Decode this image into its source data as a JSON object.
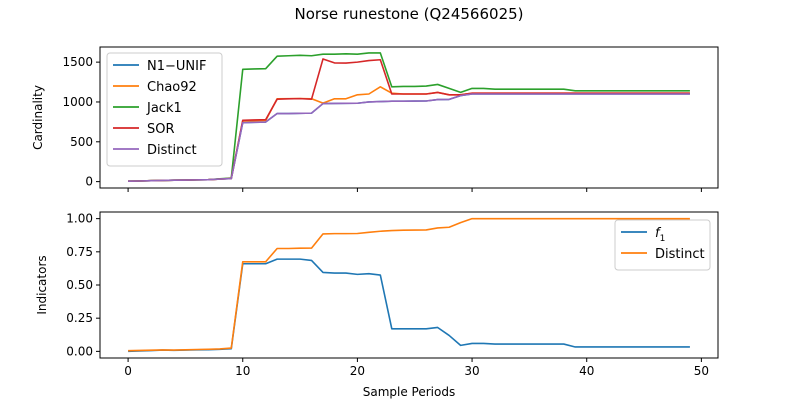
{
  "figure": {
    "title": "Norse runestone (Q24566025)"
  },
  "chart_data": [
    {
      "type": "line",
      "xlabel": "",
      "ylabel": "Cardinality",
      "xlim": [
        -2.45,
        51.45
      ],
      "ylim": [
        -80,
        1690
      ],
      "xticks": [
        0,
        10,
        20,
        30,
        40,
        50
      ],
      "xtick_labels": [
        "",
        "",
        "",
        "",
        "",
        ""
      ],
      "yticks": [
        0,
        500,
        1000,
        1500
      ],
      "ytick_labels": [
        "0",
        "500",
        "1000",
        "1500"
      ],
      "legend_position": "upper-left",
      "x": [
        0,
        1,
        2,
        3,
        4,
        5,
        6,
        7,
        8,
        9,
        10,
        11,
        12,
        13,
        14,
        15,
        16,
        17,
        18,
        19,
        20,
        21,
        22,
        23,
        24,
        25,
        26,
        27,
        28,
        29,
        30,
        31,
        32,
        33,
        34,
        35,
        36,
        37,
        38,
        39,
        40,
        41,
        42,
        43,
        44,
        45,
        46,
        47,
        48,
        49
      ],
      "series": [
        {
          "name": "N1−UNIF",
          "color": "#1f77b4",
          "values": [
            5,
            8,
            12,
            15,
            18,
            20,
            22,
            25,
            32,
            38,
            740,
            745,
            748,
            855,
            855,
            858,
            860,
            980,
            982,
            983,
            984,
            1000,
            1005,
            1010,
            1010,
            1011,
            1012,
            1030,
            1032,
            1080,
            1100,
            1100,
            1100,
            1100,
            1100,
            1100,
            1100,
            1100,
            1100,
            1100,
            1100,
            1100,
            1100,
            1100,
            1100,
            1100,
            1100,
            1100,
            1100,
            1100
          ]
        },
        {
          "name": "Chao92",
          "color": "#ff7f0e",
          "values": [
            5,
            8,
            12,
            15,
            18,
            20,
            22,
            25,
            32,
            40,
            760,
            765,
            768,
            1040,
            1042,
            1043,
            1040,
            985,
            1040,
            1040,
            1090,
            1100,
            1190,
            1110,
            1100,
            1100,
            1100,
            1120,
            1090,
            1090,
            1110,
            1110,
            1110,
            1110,
            1110,
            1110,
            1110,
            1110,
            1110,
            1110,
            1110,
            1110,
            1110,
            1110,
            1110,
            1110,
            1110,
            1110,
            1110,
            1110
          ]
        },
        {
          "name": "Jack1",
          "color": "#2ca02c",
          "values": [
            5,
            8,
            12,
            15,
            18,
            20,
            22,
            25,
            35,
            45,
            1410,
            1415,
            1418,
            1575,
            1580,
            1585,
            1580,
            1600,
            1600,
            1605,
            1600,
            1615,
            1615,
            1190,
            1195,
            1195,
            1200,
            1220,
            1170,
            1120,
            1170,
            1170,
            1160,
            1160,
            1160,
            1160,
            1160,
            1160,
            1160,
            1140,
            1140,
            1140,
            1140,
            1140,
            1140,
            1140,
            1140,
            1140,
            1140,
            1140
          ]
        },
        {
          "name": "SOR",
          "color": "#d62728",
          "values": [
            5,
            8,
            12,
            15,
            18,
            20,
            22,
            25,
            32,
            40,
            770,
            775,
            778,
            1035,
            1040,
            1042,
            1035,
            1540,
            1490,
            1488,
            1500,
            1520,
            1530,
            1100,
            1100,
            1100,
            1100,
            1120,
            1090,
            1090,
            1110,
            1110,
            1110,
            1110,
            1110,
            1110,
            1110,
            1110,
            1110,
            1110,
            1110,
            1110,
            1110,
            1110,
            1110,
            1110,
            1110,
            1110,
            1110,
            1110
          ]
        },
        {
          "name": "Distinct",
          "color": "#9467bd",
          "values": [
            5,
            8,
            12,
            15,
            18,
            20,
            22,
            25,
            32,
            38,
            740,
            745,
            748,
            855,
            855,
            858,
            860,
            980,
            982,
            983,
            984,
            1000,
            1005,
            1010,
            1010,
            1011,
            1012,
            1030,
            1032,
            1080,
            1100,
            1100,
            1100,
            1100,
            1100,
            1100,
            1100,
            1100,
            1100,
            1100,
            1100,
            1100,
            1100,
            1100,
            1100,
            1100,
            1100,
            1100,
            1100,
            1100
          ]
        }
      ]
    },
    {
      "type": "line",
      "xlabel": "Sample Periods",
      "ylabel": "Indicators",
      "xlim": [
        -2.45,
        51.45
      ],
      "ylim": [
        -0.05,
        1.05
      ],
      "xticks": [
        0,
        10,
        20,
        30,
        40,
        50
      ],
      "xtick_labels": [
        "0",
        "10",
        "20",
        "30",
        "40",
        "50"
      ],
      "yticks": [
        0.0,
        0.25,
        0.5,
        0.75,
        1.0
      ],
      "ytick_labels": [
        "0.00",
        "0.25",
        "0.50",
        "0.75",
        "1.00"
      ],
      "legend_position": "upper-right",
      "x": [
        0,
        1,
        2,
        3,
        4,
        5,
        6,
        7,
        8,
        9,
        10,
        11,
        12,
        13,
        14,
        15,
        16,
        17,
        18,
        19,
        20,
        21,
        22,
        23,
        24,
        25,
        26,
        27,
        28,
        29,
        30,
        31,
        32,
        33,
        34,
        35,
        36,
        37,
        38,
        39,
        40,
        41,
        42,
        43,
        44,
        45,
        46,
        47,
        48,
        49
      ],
      "series": [
        {
          "name": "f",
          "name_sub": "1",
          "color": "#1f77b4",
          "values": [
            0.0,
            0.003,
            0.006,
            0.01,
            0.008,
            0.01,
            0.012,
            0.013,
            0.015,
            0.02,
            0.66,
            0.66,
            0.66,
            0.695,
            0.695,
            0.695,
            0.685,
            0.595,
            0.59,
            0.59,
            0.58,
            0.585,
            0.575,
            0.17,
            0.17,
            0.17,
            0.17,
            0.18,
            0.12,
            0.045,
            0.06,
            0.06,
            0.055,
            0.055,
            0.055,
            0.055,
            0.055,
            0.055,
            0.055,
            0.033,
            0.033,
            0.033,
            0.033,
            0.033,
            0.033,
            0.033,
            0.033,
            0.033,
            0.033,
            0.033
          ]
        },
        {
          "name": "Distinct",
          "name_sub": "",
          "color": "#ff7f0e",
          "values": [
            0.005,
            0.007,
            0.009,
            0.011,
            0.01,
            0.012,
            0.014,
            0.016,
            0.018,
            0.025,
            0.675,
            0.675,
            0.675,
            0.775,
            0.775,
            0.777,
            0.778,
            0.885,
            0.887,
            0.887,
            0.888,
            0.897,
            0.905,
            0.91,
            0.913,
            0.914,
            0.915,
            0.93,
            0.935,
            0.97,
            1.0,
            1.0,
            1.0,
            1.0,
            1.0,
            1.0,
            1.0,
            1.0,
            1.0,
            1.0,
            1.0,
            1.0,
            1.0,
            1.0,
            1.0,
            1.0,
            1.0,
            1.0,
            1.0,
            1.0
          ]
        }
      ]
    }
  ]
}
